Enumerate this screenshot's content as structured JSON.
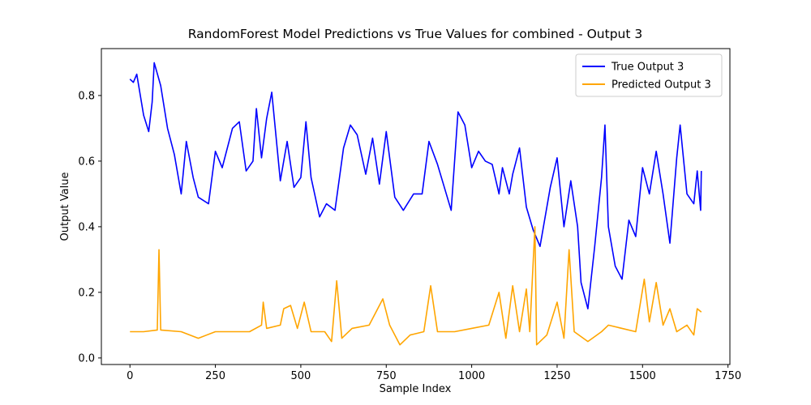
{
  "chart_data": {
    "type": "line",
    "title": "RandomForest Model Predictions vs True Values for combined - Output 3",
    "xlabel": "Sample Index",
    "ylabel": "Output Value",
    "xlim": [
      -83.6,
      1755.6
    ],
    "xticks": [
      0,
      250,
      500,
      750,
      1000,
      1250,
      1500,
      1750
    ],
    "ylim": [
      -0.02,
      0.943
    ],
    "yticks": [
      {
        "value": 0,
        "label": "0.0"
      },
      0.2,
      0.4,
      0.6,
      0.8
    ],
    "legend": "upper right",
    "series": [
      {
        "name": "True Output 3",
        "color": "#0000ff",
        "x": [
          0,
          10,
          20,
          40,
          55,
          65,
          71,
          90,
          110,
          130,
          150,
          165,
          185,
          200,
          230,
          250,
          270,
          300,
          320,
          340,
          360,
          370,
          385,
          400,
          415,
          440,
          460,
          480,
          500,
          515,
          530,
          555,
          575,
          600,
          625,
          645,
          665,
          690,
          710,
          730,
          750,
          775,
          800,
          830,
          855,
          875,
          900,
          920,
          940,
          960,
          980,
          1000,
          1020,
          1040,
          1060,
          1080,
          1090,
          1110,
          1120,
          1140,
          1160,
          1180,
          1200,
          1230,
          1250,
          1270,
          1290,
          1310,
          1320,
          1340,
          1360,
          1380,
          1390,
          1400,
          1420,
          1440,
          1460,
          1480,
          1500,
          1520,
          1540,
          1560,
          1580,
          1600,
          1610,
          1630,
          1650,
          1660,
          1670,
          1672
        ],
        "values": [
          0.85,
          0.84,
          0.865,
          0.74,
          0.69,
          0.78,
          0.9,
          0.83,
          0.7,
          0.62,
          0.5,
          0.66,
          0.55,
          0.49,
          0.47,
          0.63,
          0.58,
          0.7,
          0.72,
          0.57,
          0.6,
          0.76,
          0.61,
          0.73,
          0.81,
          0.54,
          0.66,
          0.52,
          0.55,
          0.72,
          0.55,
          0.43,
          0.47,
          0.45,
          0.64,
          0.71,
          0.68,
          0.56,
          0.67,
          0.53,
          0.69,
          0.49,
          0.45,
          0.5,
          0.5,
          0.66,
          0.59,
          0.52,
          0.45,
          0.75,
          0.71,
          0.58,
          0.63,
          0.6,
          0.59,
          0.5,
          0.58,
          0.5,
          0.56,
          0.64,
          0.46,
          0.39,
          0.34,
          0.52,
          0.61,
          0.4,
          0.54,
          0.4,
          0.23,
          0.15,
          0.34,
          0.55,
          0.71,
          0.4,
          0.28,
          0.24,
          0.42,
          0.37,
          0.58,
          0.5,
          0.63,
          0.5,
          0.35,
          0.61,
          0.71,
          0.5,
          0.47,
          0.57,
          0.45,
          0.57
        ]
      },
      {
        "name": "Predicted Output 3",
        "color": "#ffa500",
        "x": [
          0,
          40,
          80,
          85,
          90,
          150,
          200,
          250,
          300,
          350,
          385,
          390,
          400,
          440,
          450,
          470,
          490,
          510,
          530,
          570,
          590,
          605,
          620,
          650,
          700,
          740,
          760,
          790,
          820,
          860,
          880,
          900,
          950,
          1000,
          1050,
          1080,
          1100,
          1120,
          1140,
          1160,
          1170,
          1185,
          1190,
          1220,
          1250,
          1270,
          1285,
          1300,
          1340,
          1380,
          1400,
          1440,
          1480,
          1505,
          1520,
          1540,
          1560,
          1580,
          1600,
          1630,
          1650,
          1660,
          1672
        ],
        "values": [
          0.08,
          0.08,
          0.085,
          0.33,
          0.085,
          0.08,
          0.06,
          0.08,
          0.08,
          0.08,
          0.1,
          0.17,
          0.09,
          0.1,
          0.15,
          0.16,
          0.09,
          0.17,
          0.08,
          0.08,
          0.05,
          0.235,
          0.06,
          0.09,
          0.1,
          0.18,
          0.1,
          0.04,
          0.07,
          0.08,
          0.22,
          0.08,
          0.08,
          0.09,
          0.1,
          0.2,
          0.06,
          0.22,
          0.08,
          0.21,
          0.08,
          0.4,
          0.04,
          0.07,
          0.17,
          0.06,
          0.33,
          0.08,
          0.05,
          0.08,
          0.1,
          0.09,
          0.08,
          0.24,
          0.11,
          0.23,
          0.1,
          0.15,
          0.08,
          0.1,
          0.07,
          0.15,
          0.14
        ]
      }
    ]
  }
}
